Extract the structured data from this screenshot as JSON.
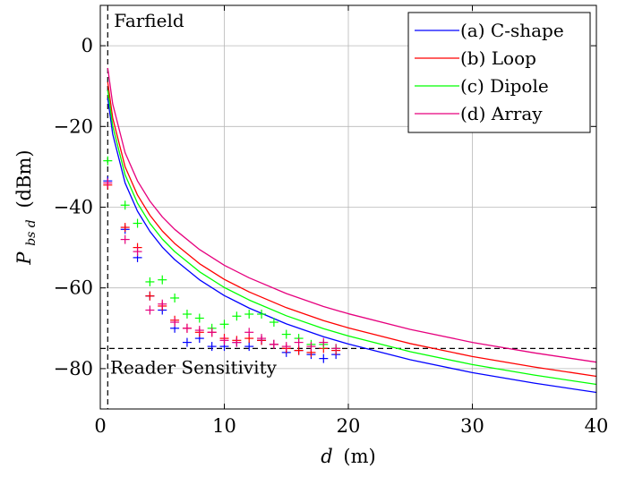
{
  "chart_data": {
    "type": "line",
    "xlabel": "d (m)",
    "xlabel_var": "d",
    "xlabel_unit": "(m)",
    "ylabel": "P_bs d (dBm)",
    "ylabel_var": "P",
    "ylabel_sub": "bs d",
    "ylabel_unit": "(dBm)",
    "xlim": [
      0,
      40
    ],
    "ylim": [
      -90,
      10
    ],
    "xticks": [
      0,
      10,
      20,
      30,
      40
    ],
    "yticks": [
      0,
      -20,
      -40,
      -60,
      -80
    ],
    "grid": true,
    "legend_position": "top-right",
    "annotations": {
      "farfield_label": "Farfield",
      "farfield_x": 0.6,
      "sensitivity_label": "Reader Sensitivity",
      "sensitivity_y": -75
    },
    "series": [
      {
        "name": "(a) C-shape",
        "color": "#0000ff",
        "curve": [
          [
            0.6,
            -13
          ],
          [
            1,
            -21.9
          ],
          [
            2,
            -34
          ],
          [
            3,
            -41
          ],
          [
            4,
            -46
          ],
          [
            5,
            -49.9
          ],
          [
            6,
            -53
          ],
          [
            8,
            -58
          ],
          [
            10,
            -61.9
          ],
          [
            12,
            -65
          ],
          [
            15,
            -68.9
          ],
          [
            18,
            -72.1
          ],
          [
            20,
            -73.9
          ],
          [
            25,
            -77.8
          ],
          [
            30,
            -81
          ],
          [
            35,
            -83.6
          ],
          [
            40,
            -85.9
          ]
        ],
        "measured": [
          [
            0.6,
            -33.5
          ],
          [
            2,
            -45.5
          ],
          [
            3,
            -52.5
          ],
          [
            4,
            -62
          ],
          [
            5,
            -65.5
          ],
          [
            6,
            -70
          ],
          [
            7,
            -73.5
          ],
          [
            8,
            -72.5
          ],
          [
            9,
            -74.5
          ],
          [
            10,
            -74.5
          ],
          [
            11,
            -73.5
          ],
          [
            12,
            -74.5
          ],
          [
            13,
            -73
          ],
          [
            14,
            -74
          ],
          [
            15,
            -76
          ],
          [
            16,
            -75.5
          ],
          [
            17,
            -76.5
          ],
          [
            18,
            -77.5
          ],
          [
            19,
            -76.5
          ]
        ]
      },
      {
        "name": "(b) Loop",
        "color": "#ff0000",
        "curve": [
          [
            0.6,
            -9
          ],
          [
            1,
            -17.9
          ],
          [
            2,
            -30
          ],
          [
            3,
            -37
          ],
          [
            4,
            -42
          ],
          [
            5,
            -45.9
          ],
          [
            6,
            -49
          ],
          [
            8,
            -54
          ],
          [
            10,
            -57.9
          ],
          [
            12,
            -61
          ],
          [
            15,
            -64.9
          ],
          [
            18,
            -68.1
          ],
          [
            20,
            -69.9
          ],
          [
            25,
            -73.8
          ],
          [
            30,
            -77
          ],
          [
            35,
            -79.6
          ],
          [
            40,
            -81.9
          ]
        ],
        "measured": [
          [
            0.6,
            -34.5
          ],
          [
            2,
            -45
          ],
          [
            3,
            -50
          ],
          [
            4,
            -62
          ],
          [
            5,
            -64.5
          ],
          [
            6,
            -68
          ],
          [
            7,
            -70
          ],
          [
            8,
            -71
          ],
          [
            9,
            -71
          ],
          [
            10,
            -72.5
          ],
          [
            11,
            -73
          ],
          [
            12,
            -72.5
          ],
          [
            13,
            -73
          ],
          [
            14,
            -74
          ],
          [
            15,
            -75
          ],
          [
            16,
            -75.5
          ],
          [
            17,
            -76
          ],
          [
            18,
            -75
          ],
          [
            19,
            -75.5
          ]
        ]
      },
      {
        "name": "(c) Dipole",
        "color": "#00ff00",
        "curve": [
          [
            0.6,
            -11
          ],
          [
            1,
            -19.9
          ],
          [
            2,
            -32
          ],
          [
            3,
            -39
          ],
          [
            4,
            -44
          ],
          [
            5,
            -47.9
          ],
          [
            6,
            -51
          ],
          [
            8,
            -56
          ],
          [
            10,
            -59.9
          ],
          [
            12,
            -63
          ],
          [
            15,
            -66.9
          ],
          [
            18,
            -70.1
          ],
          [
            20,
            -71.9
          ],
          [
            25,
            -75.8
          ],
          [
            30,
            -79
          ],
          [
            35,
            -81.6
          ],
          [
            40,
            -83.9
          ]
        ],
        "measured": [
          [
            0.6,
            -28.5
          ],
          [
            2,
            -39.5
          ],
          [
            3,
            -44
          ],
          [
            4,
            -58.5
          ],
          [
            5,
            -58
          ],
          [
            6,
            -62.5
          ],
          [
            7,
            -66.5
          ],
          [
            8,
            -67.5
          ],
          [
            9,
            -70
          ],
          [
            10,
            -69
          ],
          [
            11,
            -67
          ],
          [
            12,
            -66.5
          ],
          [
            13,
            -66.5
          ],
          [
            14,
            -68.5
          ],
          [
            15,
            -71.5
          ],
          [
            16,
            -72.5
          ],
          [
            17,
            -74
          ],
          [
            18,
            -74
          ],
          [
            19,
            -75
          ]
        ]
      },
      {
        "name": "(d) Array",
        "color": "#e6007e",
        "curve": [
          [
            0.6,
            -5.5
          ],
          [
            1,
            -14.4
          ],
          [
            2,
            -26.5
          ],
          [
            3,
            -33.5
          ],
          [
            4,
            -38.5
          ],
          [
            5,
            -42.4
          ],
          [
            6,
            -45.5
          ],
          [
            8,
            -50.5
          ],
          [
            10,
            -54.4
          ],
          [
            12,
            -57.5
          ],
          [
            15,
            -61.4
          ],
          [
            18,
            -64.6
          ],
          [
            20,
            -66.4
          ],
          [
            25,
            -70.3
          ],
          [
            30,
            -73.5
          ],
          [
            35,
            -76.1
          ],
          [
            40,
            -78.4
          ]
        ],
        "measured": [
          [
            0.6,
            -34
          ],
          [
            2,
            -48
          ],
          [
            3,
            -51
          ],
          [
            4,
            -65.5
          ],
          [
            5,
            -64
          ],
          [
            6,
            -68.5
          ],
          [
            7,
            -70
          ],
          [
            8,
            -70.5
          ],
          [
            9,
            -71
          ],
          [
            10,
            -73
          ],
          [
            11,
            -73.5
          ],
          [
            12,
            -71
          ],
          [
            13,
            -72.5
          ],
          [
            14,
            -74
          ],
          [
            15,
            -74.5
          ],
          [
            16,
            -73.5
          ],
          [
            17,
            -74.5
          ],
          [
            18,
            -73.5
          ],
          [
            19,
            -75
          ]
        ]
      }
    ]
  }
}
